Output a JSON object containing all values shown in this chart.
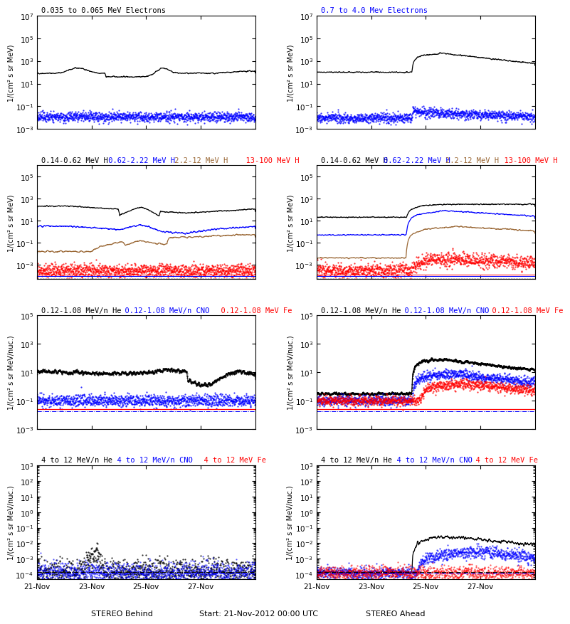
{
  "titles_row0_left": [
    [
      "0.035 to 0.065 MeV Electrons",
      "black"
    ]
  ],
  "titles_row0_right": [
    [
      "0.7 to 4.0 Mev Electrons",
      "blue"
    ]
  ],
  "titles_row1_left": [
    [
      "0.14-0.62 MeV H",
      "black"
    ],
    [
      "0.62-2.22 MeV H",
      "blue"
    ],
    [
      "2.2-12 MeV H",
      "brown"
    ],
    [
      "  13-100 MeV H",
      "red"
    ]
  ],
  "titles_row1_right": [
    [
      "0.14-0.62 MeV H",
      "black"
    ],
    [
      "0.62-2.22 MeV H",
      "blue"
    ],
    [
      "2.2-12 MeV H",
      "brown"
    ],
    [
      "  13-100 MeV H",
      "red"
    ]
  ],
  "titles_row2_left": [
    [
      "0.12-1.08 MeV/n He",
      "black"
    ],
    [
      "  0.12-1.08 MeV/n CNO",
      "blue"
    ],
    [
      "  0.12-1.08 MeV Fe",
      "red"
    ]
  ],
  "titles_row2_right": [
    [
      "0.12-1.08 MeV/n He",
      "black"
    ],
    [
      "  0.12-1.08 MeV/n CNO",
      "blue"
    ],
    [
      "  0.12-1.08 MeV Fe",
      "red"
    ]
  ],
  "titles_row3_left": [
    [
      "4 to 12 MeV/n He",
      "black"
    ],
    [
      "  4 to 12 MeV/n CNO",
      "blue"
    ],
    [
      "  4 to 12 MeV Fe",
      "red"
    ]
  ],
  "titles_row3_right": [
    [
      "4 to 12 MeV/n He",
      "black"
    ],
    [
      "  4 to 12 MeV/n CNO",
      "blue"
    ],
    [
      "  4 to 12 MeV Fe",
      "red"
    ]
  ],
  "xlabel_left": "STEREO Behind",
  "xlabel_right": "STEREO Ahead",
  "xlabel_center": "Start: 21-Nov-2012 00:00 UTC",
  "ylabel_electrons": "1/(cm² s sr MeV)",
  "ylabel_H": "1/(cm² s sr MeV)",
  "ylabel_He_low": "1/(cm² s sr MeV/nuc.)",
  "ylabel_He_high": "1/(cm² s sr MeV/nuc.)",
  "color_black": "#000000",
  "color_blue": "#0000FF",
  "color_brown": "#996633",
  "color_red": "#FF0000",
  "background_color": "#FFFFFF",
  "xtick_labels": [
    "21-Nov",
    "23-Nov",
    "25-Nov",
    "27-Nov"
  ],
  "xtick_pos": [
    0,
    2,
    4,
    6
  ],
  "xlim": [
    0,
    8
  ]
}
